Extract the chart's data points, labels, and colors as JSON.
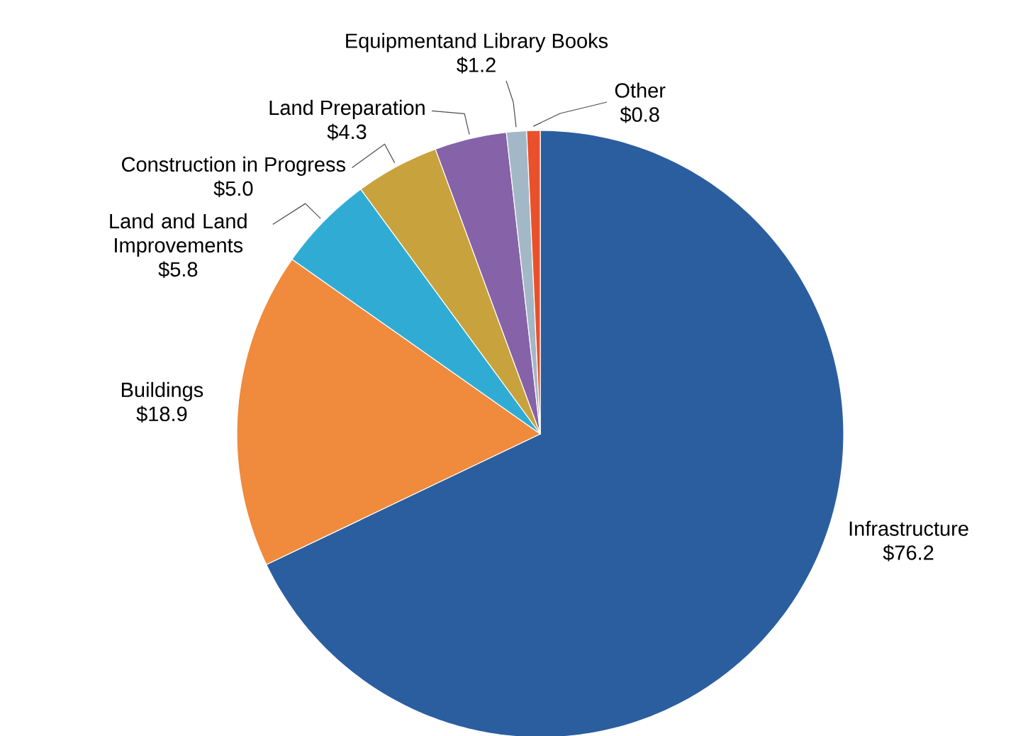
{
  "chart_data": {
    "type": "pie",
    "categories": [
      "Infrastructure",
      "Buildings",
      "Land and Land Improvements",
      "Construction in Progress",
      "Land Preparation",
      "Equipmentand Library Books",
      "Other"
    ],
    "values": [
      76.2,
      18.9,
      5.8,
      5.0,
      4.3,
      1.2,
      0.8
    ],
    "value_labels": [
      "$76.2",
      "$18.9",
      "$5.8",
      "$5.0",
      "$4.3",
      "$1.2",
      "$0.8"
    ],
    "colors": [
      "#2b5e9f",
      "#f08a3c",
      "#30acd4",
      "#c8a23c",
      "#8662a8",
      "#a3b8c6",
      "#e8512c"
    ]
  }
}
